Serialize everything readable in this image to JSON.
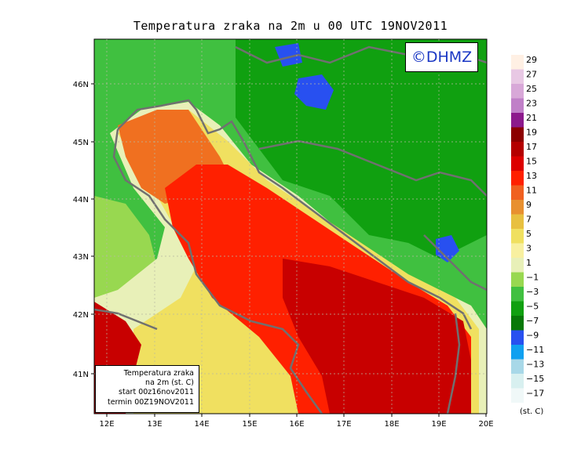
{
  "title": "Temperatura zraka na 2m u 00 UTC 19NOV2011",
  "logo_text": "©DHMZ",
  "info_box": {
    "lines": [
      "Temperatura zraka",
      "na 2m (st. C)",
      "start 00z16nov2011",
      "termin 00Z19NOV2011"
    ]
  },
  "x_axis": {
    "ticks": [
      "12E",
      "13E",
      "14E",
      "15E",
      "16E",
      "17E",
      "18E",
      "19E",
      "20E"
    ]
  },
  "y_axis": {
    "ticks": [
      "41N",
      "42N",
      "43N",
      "44N",
      "45N",
      "46N"
    ]
  },
  "legend": {
    "labels": [
      "29",
      "27",
      "25",
      "23",
      "21",
      "19",
      "17",
      "15",
      "13",
      "11",
      "9",
      "7",
      "5",
      "3",
      "1",
      "−1",
      "−3",
      "−5",
      "−7",
      "−9",
      "−11",
      "−13",
      "−15",
      "−17"
    ],
    "colors": [
      "#fff0e4",
      "#e8c8e4",
      "#d8a8d8",
      "#c080c8",
      "#8c1a8c",
      "#8c0000",
      "#b40000",
      "#dc0000",
      "#ff2000",
      "#f06020",
      "#e89030",
      "#e8c040",
      "#f0e060",
      "#f8f0a0",
      "#e8f0b8",
      "#98d850",
      "#40c040",
      "#10a010",
      "#087808",
      "#2850f0",
      "#10a0f0",
      "#a8d8e8",
      "#d8f0f0",
      "#f0f8f8"
    ],
    "units": "(st. C)"
  },
  "map_colors": {
    "sea_warm": "#c80000",
    "sea_hot": "#ff2000",
    "coast_orange": "#f07020",
    "coast_yellow": "#f0e060",
    "coast_pale": "#e8f0b8",
    "land_light": "#98d850",
    "land_mid": "#40c040",
    "land_dark": "#10a010",
    "cold_blue": "#2850f0",
    "border": "#707070"
  }
}
